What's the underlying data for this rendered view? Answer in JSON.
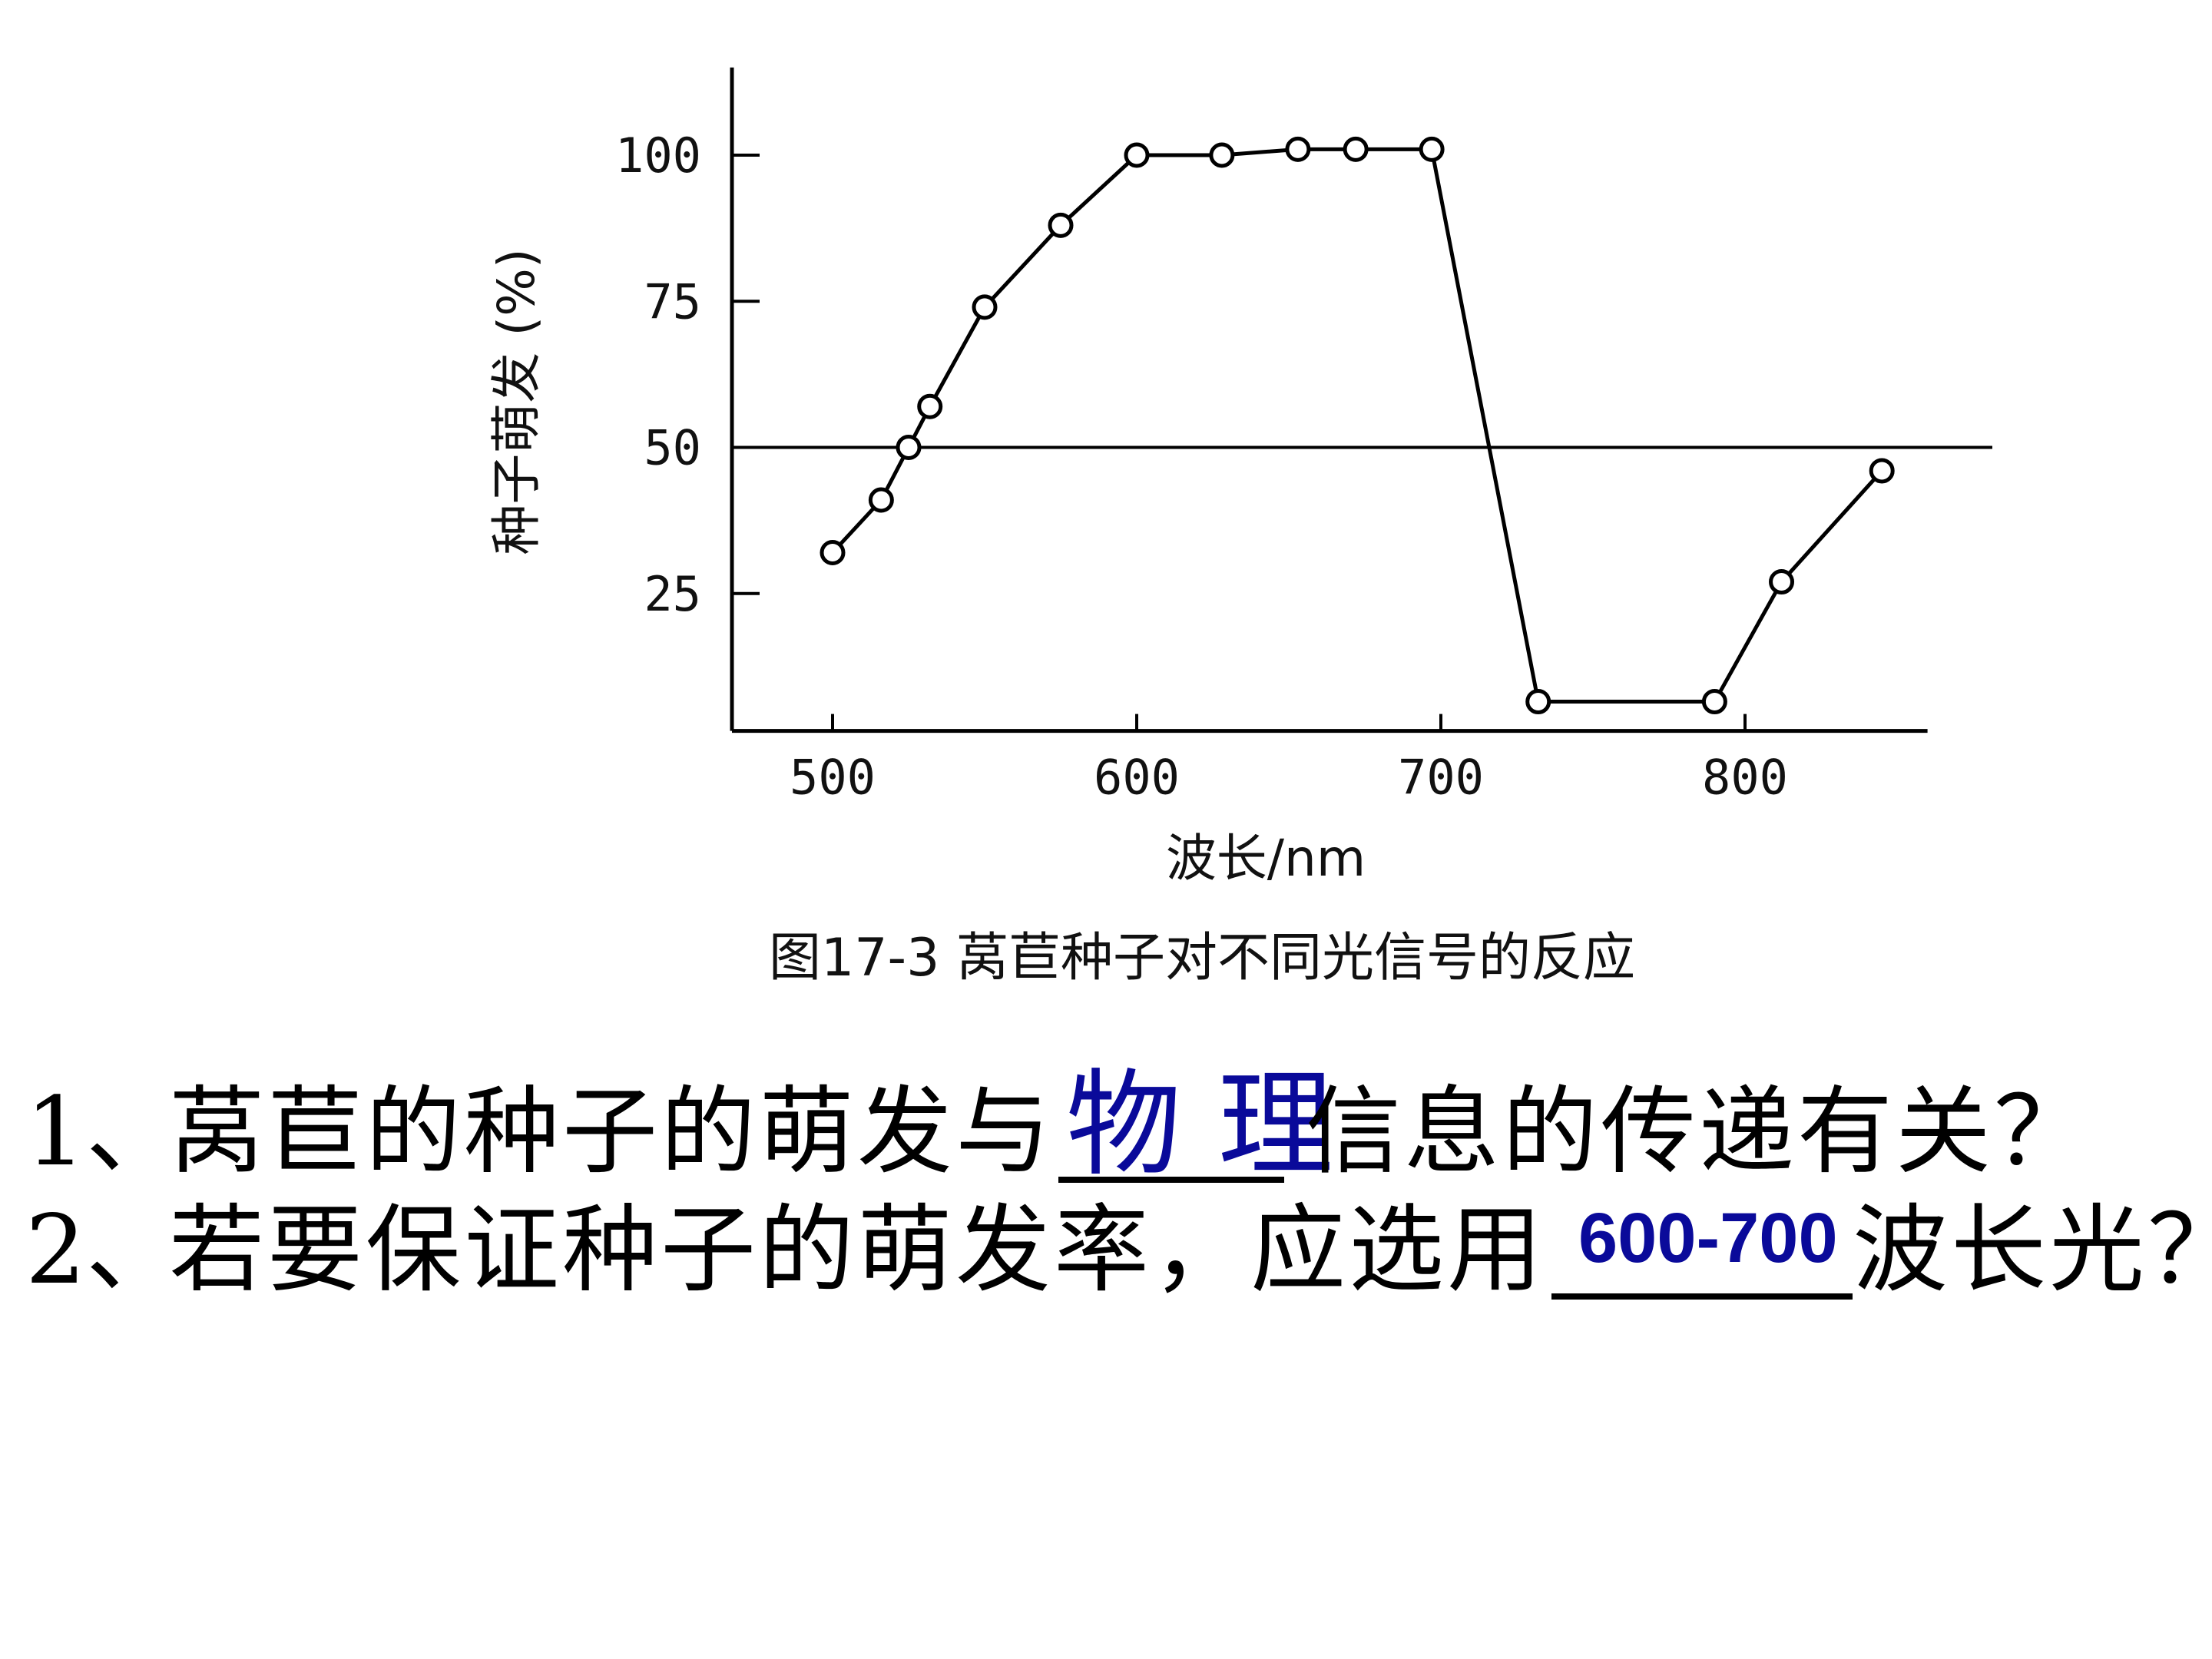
{
  "chart_data": {
    "type": "line",
    "caption": "图17-3 莴苣种子对不同光信号的反应",
    "xlabel": "波长/nm",
    "ylabel": "种子萌发 (%)",
    "xticks": [
      500,
      600,
      700,
      800
    ],
    "yticks": [
      25,
      50,
      75,
      100
    ],
    "xlim": [
      478,
      860
    ],
    "ylim": [
      1.5,
      115
    ],
    "reference_line_y": 50,
    "grid": false,
    "marker": "open-circle",
    "x": [
      500,
      516,
      525,
      532,
      550,
      575,
      600,
      628,
      653,
      672,
      697,
      732,
      790,
      812,
      845
    ],
    "y": [
      32,
      41,
      50,
      57,
      74,
      88,
      100,
      100,
      101,
      101,
      101,
      6.5,
      6.5,
      27,
      46
    ]
  },
  "questions": [
    {
      "number": "1、",
      "before": "莴苣的种子的萌发与",
      "answer": "物 理",
      "after": "信息的传递有关？"
    },
    {
      "number": "2、",
      "before": "若要保证种子的萌发率，应选用",
      "answer": "600-700",
      "after": "波长光？"
    }
  ],
  "colors": {
    "answer": "#0a0a9a",
    "ink": "#000000"
  }
}
